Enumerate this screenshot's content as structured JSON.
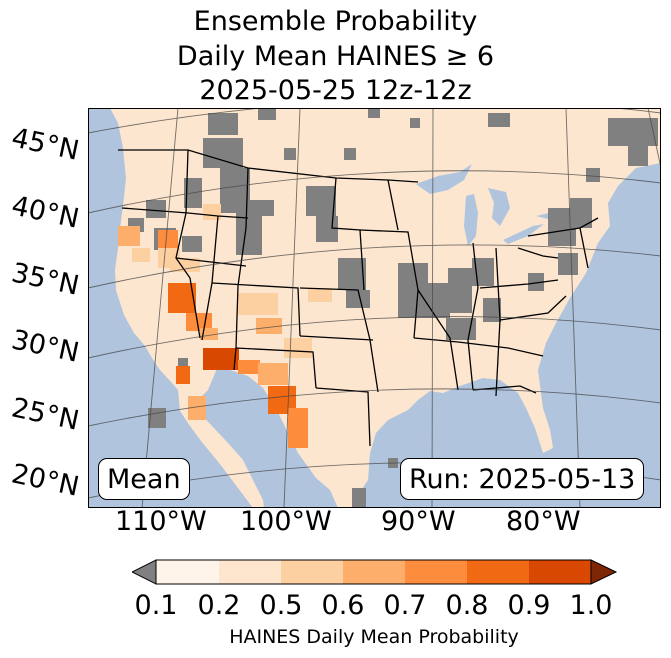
{
  "title": {
    "line1": "Ensemble Probability",
    "line2": "Daily Mean HAINES ≥ 6",
    "line3": "2025-05-25 12z-12z"
  },
  "map": {
    "latitude_labels": [
      "45°N",
      "40°N",
      "35°N",
      "30°N",
      "25°N",
      "20°N"
    ],
    "longitude_labels": [
      "110°W",
      "100°W",
      "90°W",
      "80°W"
    ],
    "stat_box": "Mean",
    "run_box": "Run: 2025-05-13",
    "colors": {
      "ocean": "#b0c4de",
      "land": "#fce6cf",
      "missing": "#808080",
      "borders": "#000000"
    }
  },
  "colorbar": {
    "ticks": [
      "0.1",
      "0.2",
      "0.5",
      "0.6",
      "0.7",
      "0.8",
      "0.9",
      "1.0"
    ],
    "label": "HAINES Daily Mean Probability",
    "under_color": "#808080",
    "bins": [
      "#fff4ea",
      "#fee6ce",
      "#fdd0a2",
      "#fdae6b",
      "#fd8d3c",
      "#f16913",
      "#d94801",
      "#a63603"
    ],
    "over_color": "#7f2704"
  }
}
